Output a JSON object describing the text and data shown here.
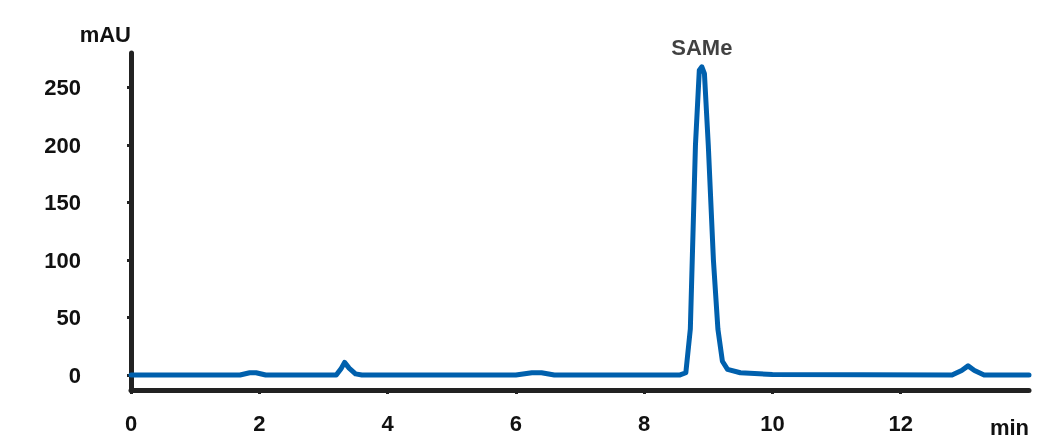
{
  "chart_data": {
    "type": "line",
    "xlabel": "min",
    "ylabel": "mAU",
    "xlim": [
      0,
      14
    ],
    "ylim": [
      -13,
      280
    ],
    "xticks": [
      0,
      2,
      4,
      6,
      8,
      10,
      12
    ],
    "yticks": [
      0,
      50,
      100,
      150,
      200,
      250
    ],
    "grid": false,
    "marker": "none",
    "line_style": "solid",
    "annotations": [
      {
        "text": "SAMe",
        "x": 8.9,
        "y": 268
      }
    ],
    "series": [
      {
        "color": "#0060ad",
        "x": [
          0,
          1.7,
          1.85,
          1.95,
          2.1,
          3.2,
          3.28,
          3.33,
          3.4,
          3.5,
          3.6,
          6.0,
          6.25,
          6.4,
          6.6,
          8.55,
          8.65,
          8.72,
          8.8,
          8.86,
          8.9,
          8.94,
          9.0,
          9.08,
          9.15,
          9.22,
          9.3,
          9.5,
          10,
          12.8,
          12.95,
          13.05,
          13.15,
          13.3,
          14
        ],
        "values": [
          0,
          0,
          2,
          2,
          0,
          0,
          6,
          11,
          6,
          1,
          0,
          0,
          2,
          2,
          0,
          0,
          2,
          40,
          200,
          265,
          268,
          262,
          200,
          100,
          40,
          12,
          5,
          2,
          0.5,
          0,
          4,
          8,
          4,
          0,
          0
        ]
      }
    ]
  }
}
